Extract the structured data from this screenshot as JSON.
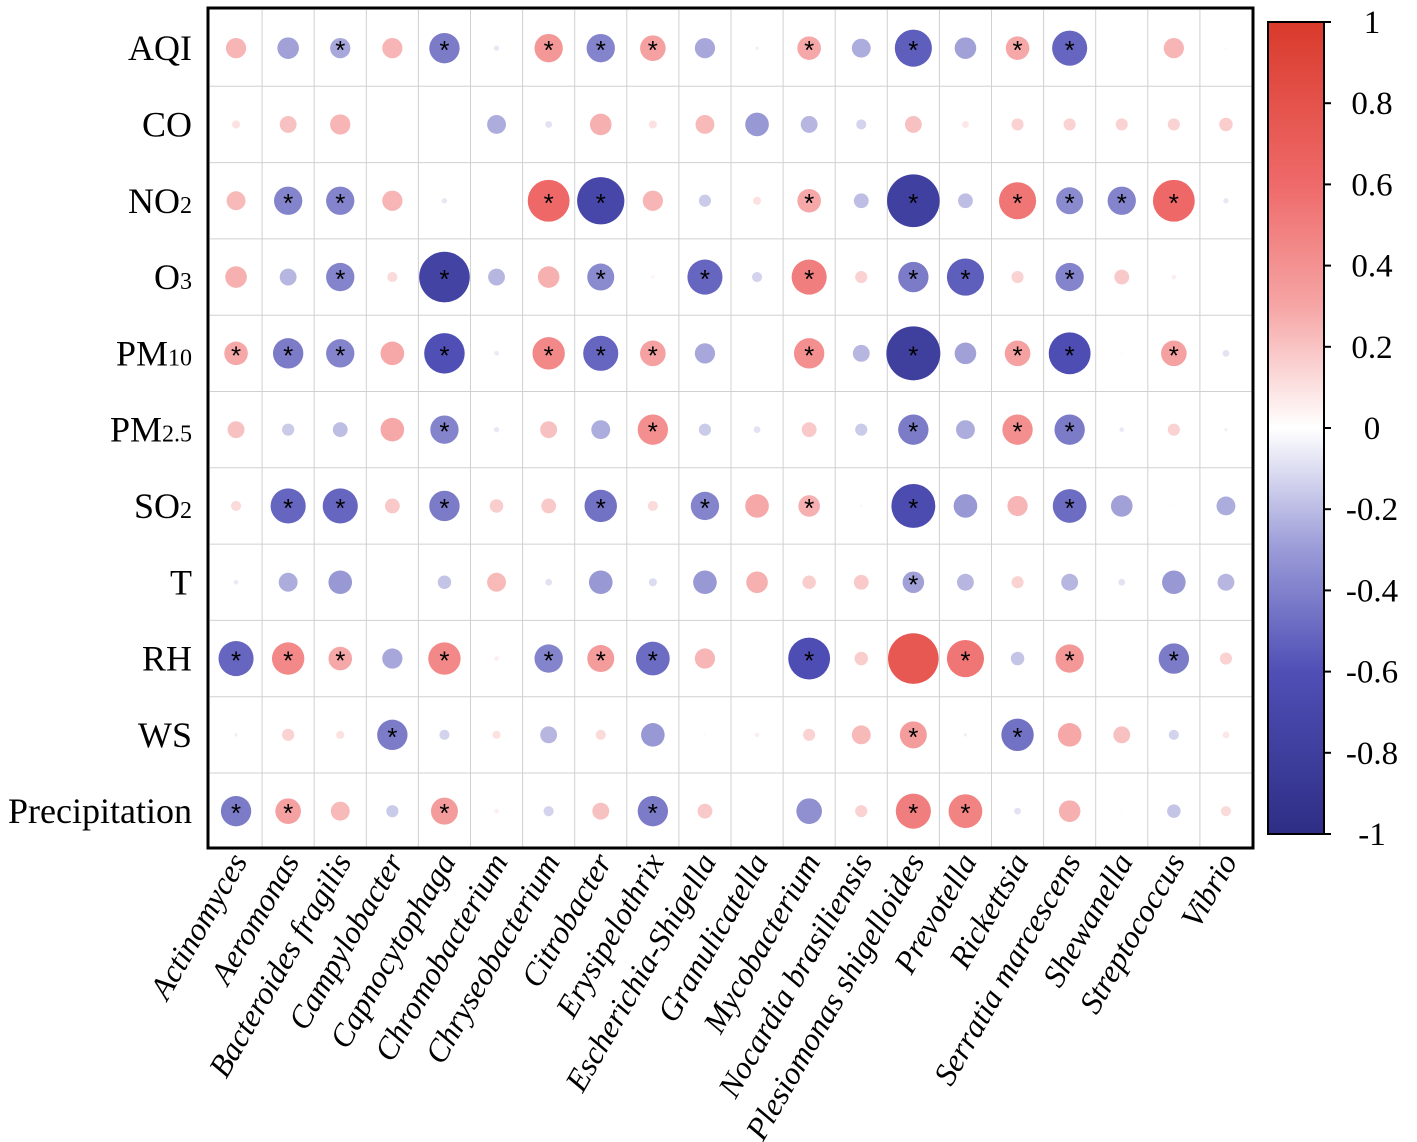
{
  "chart_data": {
    "type": "heatmap",
    "title": "",
    "rows": [
      {
        "label": "AQI",
        "base": "AQI",
        "sub": ""
      },
      {
        "label": "CO",
        "base": "CO",
        "sub": ""
      },
      {
        "label": "NO₂",
        "base": "NO",
        "sub": "2"
      },
      {
        "label": "O₃",
        "base": "O",
        "sub": "3"
      },
      {
        "label": "PM₁₀",
        "base": "PM",
        "sub": "10"
      },
      {
        "label": "PM₂.₅",
        "base": "PM",
        "sub": "2.5"
      },
      {
        "label": "SO₂",
        "base": "SO",
        "sub": "2"
      },
      {
        "label": "T",
        "base": "T",
        "sub": ""
      },
      {
        "label": "RH",
        "base": "RH",
        "sub": ""
      },
      {
        "label": "WS",
        "base": "WS",
        "sub": ""
      },
      {
        "label": "Precipitation",
        "base": "Precipitation",
        "sub": ""
      }
    ],
    "columns": [
      "Actinomyces",
      "Aeromonas",
      "Bacteroides fragilis",
      "Campylobacter",
      "Capnocytophaga",
      "Chromobacterium",
      "Chryseobacterium",
      "Citrobacter",
      "Erysipelothrix",
      "Escherichia-Shigella",
      "Granulicatella",
      "Mycobacterium",
      "Nocardia brasiliensis",
      "Plesiomonas shigelloides",
      "Prevotella",
      "Rickettsia",
      "Serratia marcescens",
      "Shewanella",
      "Streptococcus",
      "Vibrio"
    ],
    "values": [
      [
        0.3,
        -0.32,
        -0.3,
        0.3,
        -0.45,
        -0.08,
        0.42,
        -0.42,
        0.38,
        -0.3,
        -0.05,
        0.35,
        -0.28,
        -0.55,
        -0.32,
        0.35,
        -0.52,
        0.0,
        0.3,
        -0.03
      ],
      [
        0.12,
        0.25,
        0.3,
        0.03,
        0.0,
        -0.28,
        -0.1,
        0.32,
        0.12,
        0.28,
        -0.35,
        -0.25,
        -0.15,
        0.25,
        0.1,
        0.18,
        0.18,
        0.18,
        0.18,
        0.2
      ],
      [
        0.28,
        -0.42,
        -0.42,
        0.3,
        -0.08,
        0.0,
        0.62,
        -0.7,
        0.3,
        -0.18,
        0.12,
        0.35,
        -0.22,
        -0.78,
        -0.22,
        0.55,
        -0.4,
        -0.42,
        0.62,
        -0.08
      ],
      [
        0.32,
        -0.25,
        -0.42,
        0.15,
        -0.75,
        -0.25,
        0.32,
        -0.4,
        0.05,
        -0.52,
        -0.15,
        0.52,
        0.18,
        -0.45,
        -0.55,
        0.18,
        -0.42,
        0.22,
        0.07,
        0.0
      ],
      [
        0.35,
        -0.45,
        -0.42,
        0.35,
        -0.6,
        -0.07,
        0.48,
        -0.52,
        0.38,
        -0.3,
        0.0,
        0.45,
        -0.25,
        -0.8,
        -0.32,
        0.38,
        -0.62,
        -0.03,
        0.38,
        -0.1
      ],
      [
        0.25,
        -0.18,
        -0.22,
        0.35,
        -0.42,
        -0.08,
        0.25,
        -0.28,
        0.45,
        -0.18,
        -0.1,
        0.22,
        -0.18,
        -0.45,
        -0.28,
        0.45,
        -0.45,
        -0.07,
        0.18,
        -0.05
      ],
      [
        0.15,
        -0.52,
        -0.52,
        0.22,
        -0.45,
        0.2,
        0.22,
        -0.48,
        0.15,
        -0.42,
        0.35,
        0.32,
        -0.03,
        -0.65,
        -0.35,
        0.3,
        -0.5,
        -0.32,
        0.03,
        -0.28
      ],
      [
        -0.07,
        -0.28,
        -0.35,
        0.0,
        -0.2,
        0.28,
        -0.1,
        -0.35,
        -0.12,
        -0.35,
        0.32,
        0.2,
        0.22,
        -0.32,
        -0.25,
        0.18,
        -0.25,
        -0.1,
        -0.35,
        -0.25
      ],
      [
        -0.52,
        0.48,
        0.35,
        -0.3,
        0.48,
        0.07,
        -0.42,
        0.4,
        -0.5,
        0.3,
        0.0,
        -0.62,
        0.2,
        0.75,
        0.55,
        -0.2,
        0.42,
        0.02,
        -0.45,
        0.18
      ],
      [
        -0.05,
        0.18,
        0.12,
        -0.45,
        -0.15,
        0.12,
        -0.25,
        0.15,
        -0.35,
        0.03,
        0.07,
        0.18,
        0.28,
        0.4,
        -0.05,
        -0.48,
        0.35,
        0.25,
        -0.15,
        0.1
      ],
      [
        -0.45,
        0.38,
        0.28,
        -0.18,
        0.4,
        0.07,
        -0.15,
        0.25,
        -0.45,
        0.22,
        0.03,
        -0.38,
        0.18,
        0.52,
        0.5,
        -0.1,
        0.32,
        0.03,
        -0.2,
        0.15
      ]
    ],
    "significant": [
      [
        0,
        0,
        1,
        0,
        1,
        0,
        1,
        1,
        1,
        0,
        0,
        1,
        0,
        1,
        0,
        1,
        1,
        0,
        0,
        0
      ],
      [
        0,
        0,
        0,
        0,
        0,
        0,
        0,
        0,
        0,
        0,
        0,
        0,
        0,
        0,
        0,
        0,
        0,
        0,
        0,
        0
      ],
      [
        0,
        1,
        1,
        0,
        0,
        0,
        1,
        1,
        0,
        0,
        0,
        1,
        0,
        1,
        0,
        1,
        1,
        1,
        1,
        0
      ],
      [
        0,
        0,
        1,
        0,
        1,
        0,
        0,
        1,
        0,
        1,
        0,
        1,
        0,
        1,
        1,
        0,
        1,
        0,
        0,
        0
      ],
      [
        1,
        1,
        1,
        0,
        1,
        0,
        1,
        1,
        1,
        0,
        0,
        1,
        0,
        1,
        0,
        1,
        1,
        0,
        1,
        0
      ],
      [
        0,
        0,
        0,
        0,
        1,
        0,
        0,
        0,
        1,
        0,
        0,
        0,
        0,
        1,
        0,
        1,
        1,
        0,
        0,
        0
      ],
      [
        0,
        1,
        1,
        0,
        1,
        0,
        0,
        1,
        0,
        1,
        0,
        1,
        0,
        1,
        0,
        0,
        1,
        0,
        0,
        0
      ],
      [
        0,
        0,
        0,
        0,
        0,
        0,
        0,
        0,
        0,
        0,
        0,
        0,
        0,
        1,
        0,
        0,
        0,
        0,
        0,
        0
      ],
      [
        1,
        1,
        1,
        0,
        1,
        0,
        1,
        1,
        1,
        0,
        0,
        1,
        0,
        0,
        1,
        0,
        1,
        0,
        1,
        0
      ],
      [
        0,
        0,
        0,
        1,
        0,
        0,
        0,
        0,
        0,
        0,
        0,
        0,
        0,
        1,
        0,
        1,
        0,
        0,
        0,
        0
      ],
      [
        1,
        1,
        0,
        0,
        1,
        0,
        0,
        0,
        1,
        0,
        0,
        0,
        0,
        1,
        1,
        0,
        0,
        0,
        0,
        0
      ]
    ],
    "significance_marker": "*",
    "colorbar": {
      "range": [
        -1,
        1
      ],
      "ticks": [
        "1",
        "0.8",
        "0.6",
        "0.4",
        "0.2",
        "0",
        "-0.2",
        "-0.4",
        "-0.6",
        "-0.8",
        "-1"
      ],
      "tick_values": [
        1,
        0.8,
        0.6,
        0.4,
        0.2,
        0,
        -0.2,
        -0.4,
        -0.6,
        -0.8,
        -1
      ],
      "colors": {
        "negative": "#2e2e86",
        "zero": "#ffffff",
        "positive": "#d93a2b"
      }
    },
    "xlabel": "",
    "ylabel": ""
  }
}
